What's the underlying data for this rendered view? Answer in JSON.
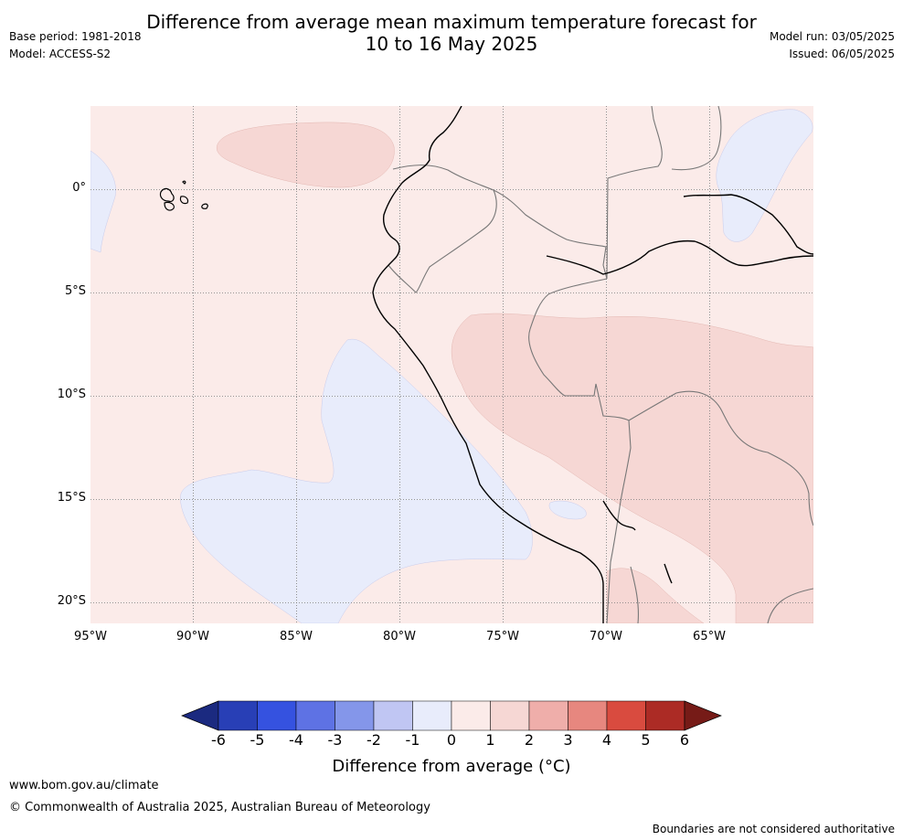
{
  "header": {
    "title_line1": "Difference from average mean maximum temperature forecast for",
    "title_line2": "10 to 16 May 2025",
    "base_period": "Base period: 1981-2018",
    "model": "Model: ACCESS-S2",
    "model_run": "Model run: 03/05/2025",
    "issued": "Issued: 06/05/2025"
  },
  "map": {
    "lon_range": [
      -95,
      -60
    ],
    "lat_range": [
      -21,
      4
    ],
    "lon_ticks": [
      "95°W",
      "90°W",
      "85°W",
      "80°W",
      "75°W",
      "70°W",
      "65°W"
    ],
    "lat_ticks": [
      "0°",
      "5°S",
      "10°S",
      "15°S",
      "20°S"
    ],
    "gridlines": true,
    "colors": {
      "anom_0_to_1": "#fbebe9",
      "anom_1_to_2": "#f6d7d4",
      "anom_-1_to_0": "#e8ecfb",
      "coastline": "#000000",
      "borders": "#777777"
    }
  },
  "colorbar": {
    "ticks": [
      "-6",
      "-5",
      "-4",
      "-3",
      "-2",
      "-1",
      "0",
      "1",
      "2",
      "3",
      "4",
      "5",
      "6"
    ],
    "colors": [
      "#1b2a80",
      "#283fb6",
      "#3552e0",
      "#5e72e4",
      "#8496ea",
      "#c0c6f3",
      "#e8ecfb",
      "#fbebe9",
      "#f6d7d4",
      "#efaeaa",
      "#e7877f",
      "#d94b3f",
      "#ac2b25",
      "#761b17"
    ],
    "label": "Difference from average (°C)"
  },
  "footer": {
    "url": "www.bom.gov.au/climate",
    "copyright": "© Commonwealth of Australia 2025, Australian Bureau of Meteorology",
    "disclaimer": "Boundaries are not considered authoritative"
  }
}
